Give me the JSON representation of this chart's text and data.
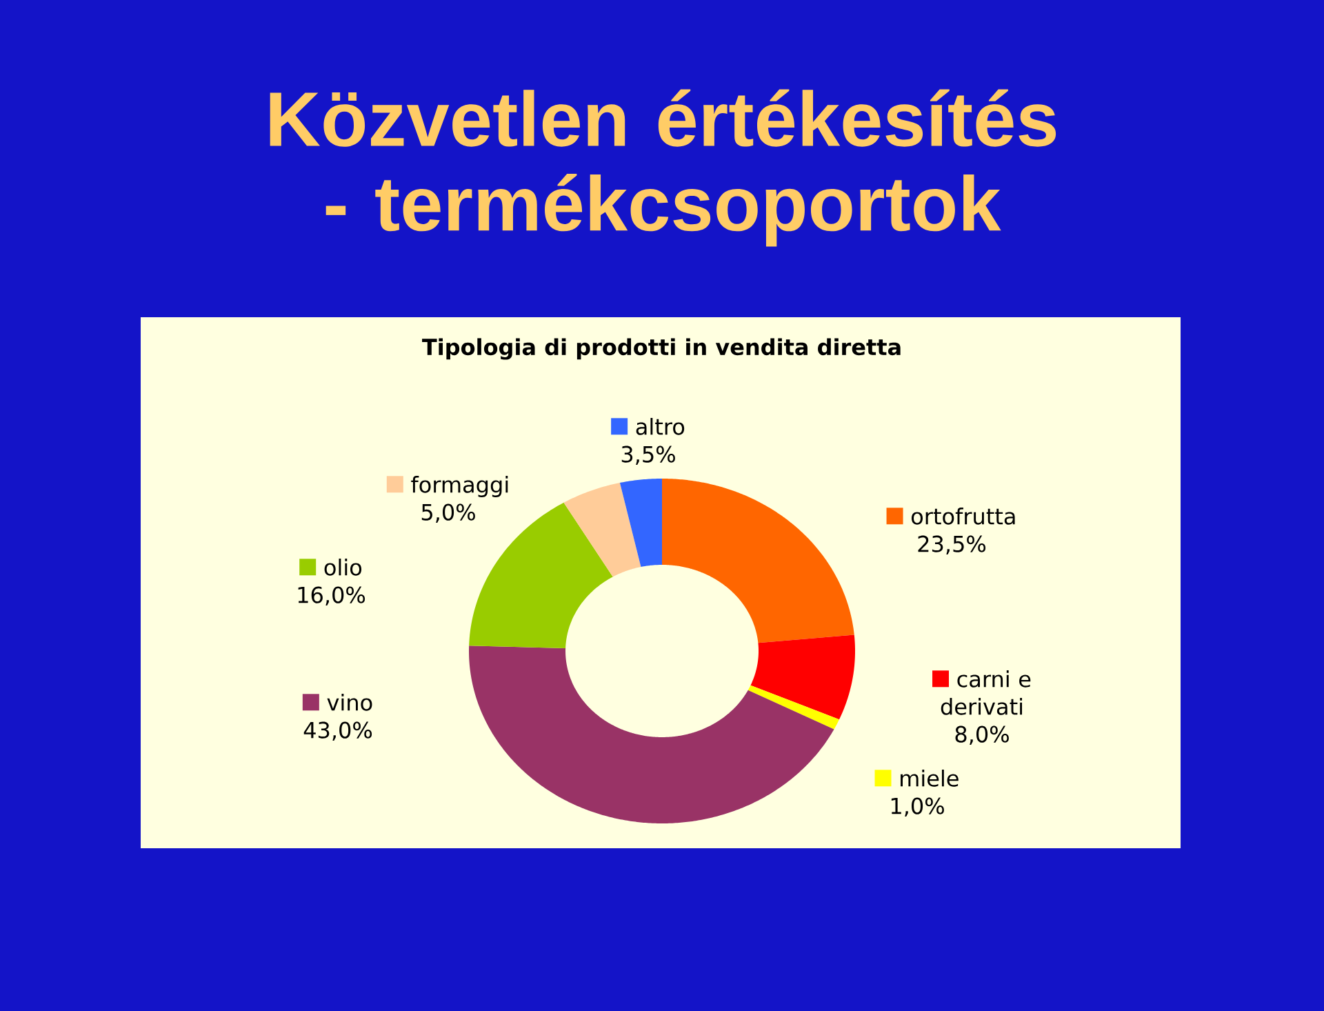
{
  "chart_data": {
    "type": "donut",
    "title": "Közvetlen értékesítés - termékcsoportok",
    "subtitle": "Tipologia di prodotti in vendita diretta",
    "categories": [
      "ortofrutta",
      "carni e derivati",
      "miele",
      "vino",
      "olio",
      "formaggi",
      "altro"
    ],
    "values": [
      23.5,
      8.0,
      1.0,
      43.0,
      16.0,
      5.0,
      3.5
    ],
    "value_labels": [
      "23,5%",
      "8,0%",
      "1,0%",
      "43,0%",
      "16,0%",
      "5,0%",
      "3,5%"
    ],
    "colors": [
      "#ff6600",
      "#ff0000",
      "#ffff00",
      "#993366",
      "#99cc00",
      "#ffcc99",
      "#3366ff"
    ],
    "legend": "right"
  }
}
